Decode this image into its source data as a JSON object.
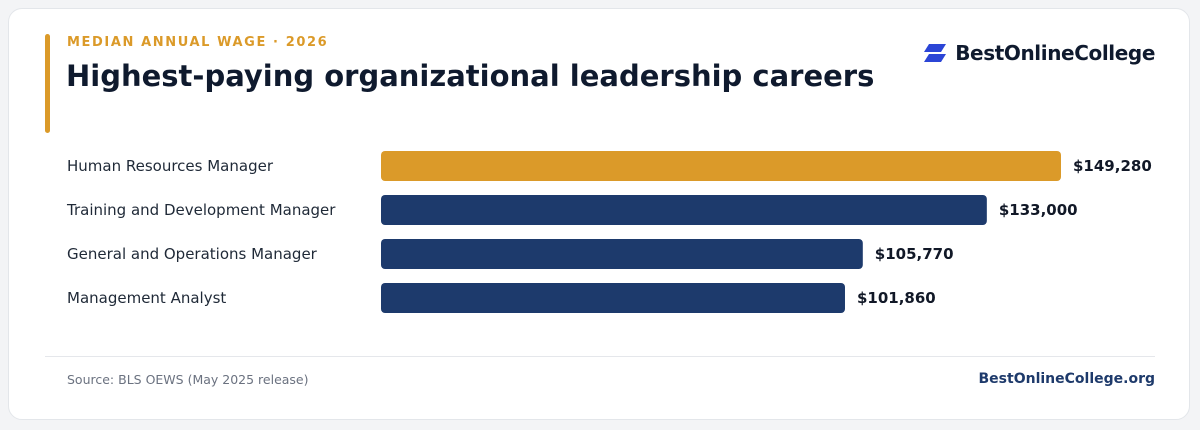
{
  "header": {
    "eyebrow": "MEDIAN ANNUAL WAGE · 2026",
    "title": "Highest-paying organizational leadership careers"
  },
  "logo": {
    "text": "BestOnlineCollege",
    "icon": "stacked-parallelogram-logo-icon"
  },
  "footer": {
    "source": "Source: BLS OEWS (May 2025 release)",
    "site": "BestOnlineCollege.org"
  },
  "colors": {
    "highlight": "#db9a29",
    "primary": "#1d3a6c",
    "logo_blue": "#2b45d6",
    "text_dark": "#0f1a2e"
  },
  "chart_data": {
    "type": "bar",
    "orientation": "horizontal",
    "categories": [
      "Human Resources Manager",
      "Training and Development Manager",
      "General and Operations Manager",
      "Management Analyst"
    ],
    "values": [
      149280,
      133000,
      105770,
      101860
    ],
    "data_labels": [
      "$149,280",
      "$133,000",
      "$105,770",
      "$101,860"
    ],
    "highlight_index": 0,
    "xlim": [
      0,
      149280
    ],
    "title": "",
    "xlabel": "",
    "ylabel": "",
    "grid": false,
    "legend": "none"
  }
}
